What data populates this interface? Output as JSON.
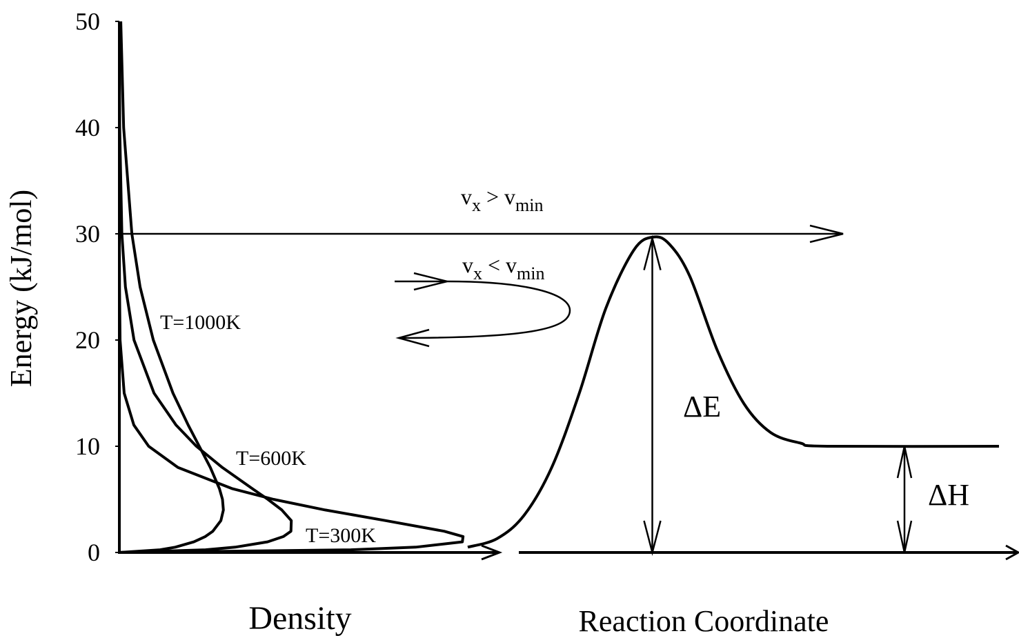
{
  "chart_data": {
    "type": "line",
    "ylabel": "Energy (kJ/mol)",
    "ylim": [
      0,
      50
    ],
    "yticks": [
      0,
      10,
      20,
      30,
      40,
      50
    ],
    "xlabel": "Density",
    "xlim": [
      0,
      0.215
    ],
    "series": [
      {
        "name": "T=300K",
        "color": "#000000",
        "x": [
          0,
          0.1296,
          0.1658,
          0.1919,
          0.1923,
          0.1817,
          0.149,
          0.1152,
          0.0863,
          0.0633,
          0.0328,
          0.0164,
          0.0081,
          0.0027,
          0.0004,
          0.0001,
          0,
          0,
          0
        ],
        "values": [
          0,
          0.25,
          0.5,
          1,
          1.5,
          2,
          3,
          4,
          5,
          6,
          8,
          10,
          12,
          15,
          20,
          25,
          30,
          40,
          50
        ]
      },
      {
        "name": "T=600K",
        "color": "#000000",
        "x": [
          0,
          0.0482,
          0.0648,
          0.0829,
          0.0918,
          0.096,
          0.0962,
          0.0909,
          0.0831,
          0.0745,
          0.0576,
          0.0431,
          0.0317,
          0.0194,
          0.0082,
          0.0034,
          0.0014,
          0.0002,
          0
        ],
        "values": [
          0,
          0.25,
          0.5,
          1,
          1.5,
          2,
          3,
          4,
          5,
          6,
          8,
          10,
          12,
          15,
          20,
          25,
          30,
          40,
          50
        ]
      },
      {
        "name": "T=1000K",
        "color": "#000000",
        "x": [
          0,
          0.0228,
          0.0313,
          0.0417,
          0.0481,
          0.0523,
          0.0568,
          0.0582,
          0.0577,
          0.056,
          0.0509,
          0.0447,
          0.0385,
          0.03,
          0.019,
          0.0116,
          0.007,
          0.0024,
          0.0008
        ],
        "values": [
          0,
          0.25,
          0.5,
          1,
          1.5,
          2,
          3,
          4,
          5,
          6,
          8,
          10,
          12,
          15,
          20,
          25,
          30,
          40,
          50
        ]
      }
    ],
    "reaction_profile": {
      "xlabel": "Reaction Coordinate",
      "xlim": [
        0,
        100
      ],
      "x": [
        0,
        5.5,
        10.6,
        15.8,
        21,
        26,
        31.3,
        35,
        38,
        41.8,
        47,
        52,
        57,
        62.6,
        67.7,
        100
      ],
      "values": [
        0.5,
        1.3,
        3.5,
        8,
        15,
        23,
        28.5,
        29.7,
        29,
        26,
        19,
        14,
        11.3,
        10.3,
        10,
        10
      ]
    },
    "threshold": 30,
    "annotations": {
      "above": [
        "v",
        "x",
        " > v",
        "min"
      ],
      "below": [
        "v",
        "x",
        " < v",
        "min"
      ],
      "delta_e": "ΔE",
      "delta_h": "ΔH"
    }
  }
}
